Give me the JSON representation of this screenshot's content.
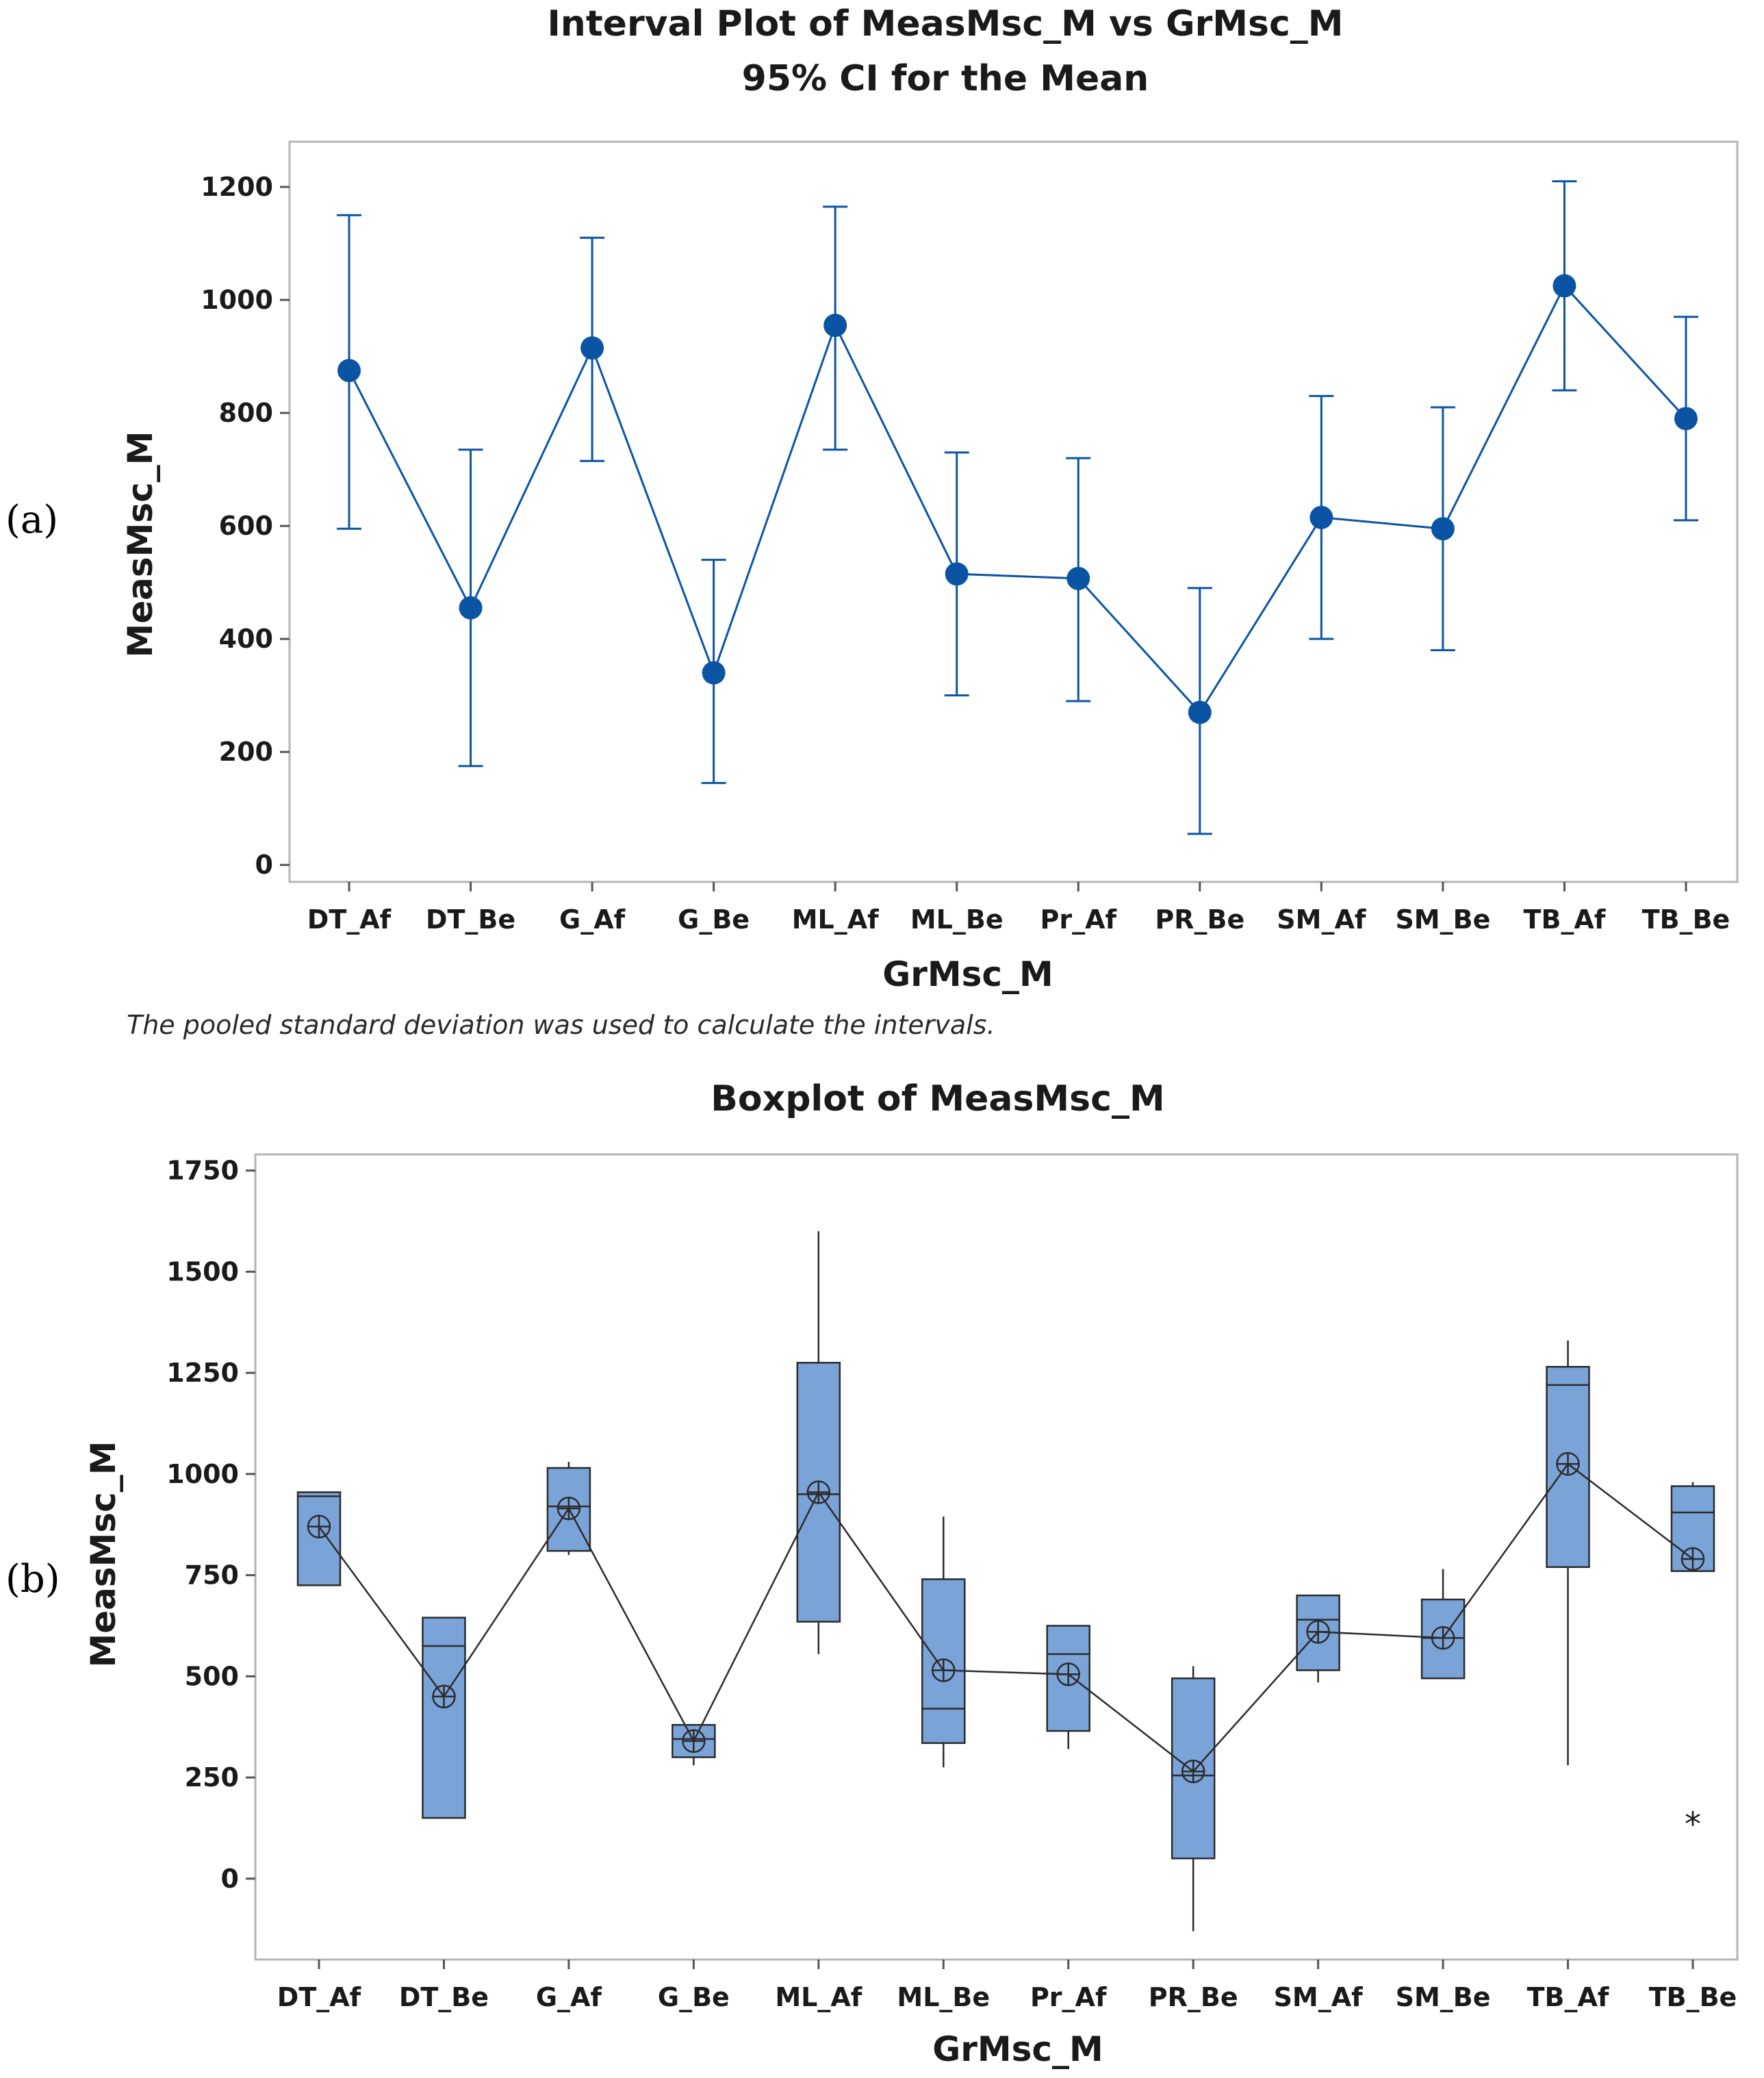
{
  "panels": [
    "(a)",
    "(b)"
  ],
  "colors": {
    "line": "#0b54a4",
    "point": "#0b54a4",
    "box_fill": "#7aa3d8",
    "box_stroke": "#2b2b2b",
    "frame": "#b4b4b4",
    "text": "#1a1a1a"
  },
  "chart_data": [
    {
      "type": "interval",
      "title": "Interval Plot of MeasMsc_M vs GrMsc_M",
      "subtitle": "95% CI for the Mean",
      "xlabel": "GrMsc_M",
      "ylabel": "MeasMsc_M",
      "footnote": "The pooled standard deviation was used to calculate the intervals.",
      "categories": [
        "DT_Af",
        "DT_Be",
        "G_Af",
        "G_Be",
        "ML_Af",
        "ML_Be",
        "Pr_Af",
        "PR_Be",
        "SM_Af",
        "SM_Be",
        "TB_Af",
        "TB_Be"
      ],
      "means": [
        875,
        455,
        915,
        340,
        955,
        515,
        507,
        270,
        615,
        595,
        1025,
        790
      ],
      "lower": [
        595,
        175,
        715,
        145,
        735,
        300,
        290,
        55,
        400,
        380,
        840,
        610
      ],
      "upper": [
        1150,
        735,
        1110,
        540,
        1165,
        730,
        720,
        490,
        830,
        810,
        1210,
        970
      ],
      "yticks": [
        "0",
        "200",
        "400",
        "600",
        "800",
        "1000",
        "1200"
      ],
      "ylim": [
        -30,
        1280
      ]
    },
    {
      "type": "boxplot",
      "title": "Boxplot of MeasMsc_M",
      "xlabel": "GrMsc_M",
      "ylabel": "MeasMsc_M",
      "categories": [
        "DT_Af",
        "DT_Be",
        "G_Af",
        "G_Be",
        "ML_Af",
        "ML_Be",
        "Pr_Af",
        "PR_Be",
        "SM_Af",
        "SM_Be",
        "TB_Af",
        "TB_Be"
      ],
      "q1": [
        725,
        150,
        810,
        300,
        635,
        335,
        365,
        50,
        515,
        495,
        770,
        760
      ],
      "median": [
        945,
        575,
        920,
        345,
        950,
        420,
        555,
        255,
        640,
        595,
        1220,
        905
      ],
      "q3": [
        955,
        645,
        1015,
        380,
        1275,
        740,
        625,
        495,
        700,
        690,
        1265,
        970
      ],
      "whisker_low": [
        725,
        150,
        800,
        280,
        555,
        275,
        320,
        -130,
        485,
        495,
        280,
        760
      ],
      "whisker_high": [
        955,
        645,
        1030,
        380,
        1600,
        895,
        625,
        525,
        700,
        765,
        1330,
        980
      ],
      "means": [
        870,
        450,
        915,
        340,
        955,
        515,
        505,
        265,
        610,
        595,
        1025,
        790
      ],
      "outliers": [
        [],
        [],
        [],
        [],
        [],
        [],
        [],
        [],
        [],
        [],
        [],
        [
          140
        ]
      ],
      "outlier_symbol": "*",
      "yticks": [
        "0",
        "250",
        "500",
        "750",
        "1000",
        "1250",
        "1500",
        "1750"
      ],
      "ylim": [
        -200,
        1790
      ]
    }
  ]
}
